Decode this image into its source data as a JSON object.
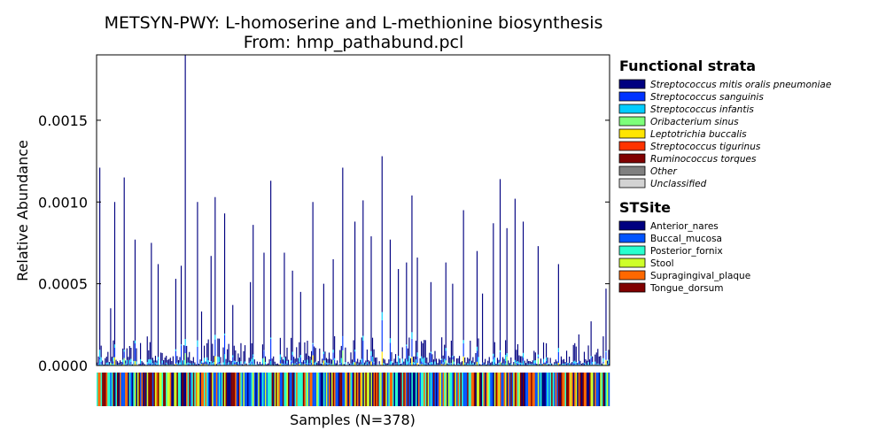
{
  "chart_data": {
    "type": "bar",
    "stacked": true,
    "title": "METSYN-PWY: L-homoserine and L-methionine biosynthesis",
    "subtitle": "From: hmp_pathabund.pcl",
    "xlabel": "Samples (N=378)",
    "ylabel": "Relative Abundance",
    "ylim": [
      0,
      0.0019
    ],
    "yticks": [
      {
        "value": 0,
        "label": "0.0000"
      },
      {
        "value": 0.0005,
        "label": "0.0005"
      },
      {
        "value": 0.001,
        "label": "0.0010"
      },
      {
        "value": 0.0015,
        "label": "0.0015"
      }
    ],
    "n_samples": 378,
    "grid": false,
    "legend_placement": "right",
    "strata_legend": {
      "title": "Functional strata",
      "items": [
        {
          "name": "Streptococcus mitis oralis pneumoniae",
          "color": "#000080"
        },
        {
          "name": "Streptococcus sanguinis",
          "color": "#0033ff"
        },
        {
          "name": "Streptococcus infantis",
          "color": "#00ccff"
        },
        {
          "name": "Oribacterium sinus",
          "color": "#7dff7a"
        },
        {
          "name": "Leptotrichia buccalis",
          "color": "#ffe500"
        },
        {
          "name": "Streptococcus tigurinus",
          "color": "#ff3300"
        },
        {
          "name": "Ruminococcus torques",
          "color": "#800000"
        },
        {
          "name": "Other",
          "color": "#808080"
        },
        {
          "name": "Unclassified",
          "color": "#d3d3d3"
        }
      ]
    },
    "site_legend": {
      "title": "STSite",
      "items": [
        {
          "name": "Anterior_nares",
          "color": "#000080"
        },
        {
          "name": "Buccal_mucosa",
          "color": "#0054ff"
        },
        {
          "name": "Posterior_fornix",
          "color": "#29ffce"
        },
        {
          "name": "Stool",
          "color": "#ceff29"
        },
        {
          "name": "Supragingival_plaque",
          "color": "#ff6800"
        },
        {
          "name": "Tongue_dorsum",
          "color": "#800000"
        }
      ]
    },
    "tall_bars": [
      {
        "sample": 2,
        "value": 0.00121
      },
      {
        "sample": 10,
        "value": 0.00035
      },
      {
        "sample": 13,
        "value": 0.001
      },
      {
        "sample": 20,
        "value": 0.00115
      },
      {
        "sample": 28,
        "value": 0.00077
      },
      {
        "sample": 40,
        "value": 0.00075
      },
      {
        "sample": 45,
        "value": 0.00062
      },
      {
        "sample": 58,
        "value": 0.00053
      },
      {
        "sample": 62,
        "value": 0.00061
      },
      {
        "sample": 65,
        "value": 0.0019
      },
      {
        "sample": 74,
        "value": 0.001
      },
      {
        "sample": 77,
        "value": 0.00033
      },
      {
        "sample": 84,
        "value": 0.00067
      },
      {
        "sample": 87,
        "value": 0.00103
      },
      {
        "sample": 94,
        "value": 0.00093
      },
      {
        "sample": 100,
        "value": 0.00037
      },
      {
        "sample": 113,
        "value": 0.00051
      },
      {
        "sample": 115,
        "value": 0.00086
      },
      {
        "sample": 123,
        "value": 0.00069
      },
      {
        "sample": 128,
        "value": 0.00113
      },
      {
        "sample": 138,
        "value": 0.00069
      },
      {
        "sample": 144,
        "value": 0.00058
      },
      {
        "sample": 150,
        "value": 0.00045
      },
      {
        "sample": 159,
        "value": 0.001
      },
      {
        "sample": 167,
        "value": 0.0005
      },
      {
        "sample": 174,
        "value": 0.00065
      },
      {
        "sample": 181,
        "value": 0.00121
      },
      {
        "sample": 190,
        "value": 0.00088
      },
      {
        "sample": 196,
        "value": 0.00101
      },
      {
        "sample": 202,
        "value": 0.00079
      },
      {
        "sample": 210,
        "value": 0.00128
      },
      {
        "sample": 216,
        "value": 0.00077
      },
      {
        "sample": 222,
        "value": 0.00059
      },
      {
        "sample": 228,
        "value": 0.00063
      },
      {
        "sample": 232,
        "value": 0.00104
      },
      {
        "sample": 236,
        "value": 0.00066
      },
      {
        "sample": 246,
        "value": 0.00051
      },
      {
        "sample": 257,
        "value": 0.00063
      },
      {
        "sample": 262,
        "value": 0.0005
      },
      {
        "sample": 270,
        "value": 0.00095
      },
      {
        "sample": 280,
        "value": 0.0007
      },
      {
        "sample": 284,
        "value": 0.00044
      },
      {
        "sample": 292,
        "value": 0.00087
      },
      {
        "sample": 297,
        "value": 0.00114
      },
      {
        "sample": 302,
        "value": 0.00084
      },
      {
        "sample": 308,
        "value": 0.00102
      },
      {
        "sample": 314,
        "value": 0.00088
      },
      {
        "sample": 325,
        "value": 0.00073
      },
      {
        "sample": 340,
        "value": 0.00062
      },
      {
        "sample": 355,
        "value": 0.00019
      },
      {
        "sample": 364,
        "value": 0.00027
      },
      {
        "sample": 375,
        "value": 0.00047
      }
    ]
  }
}
